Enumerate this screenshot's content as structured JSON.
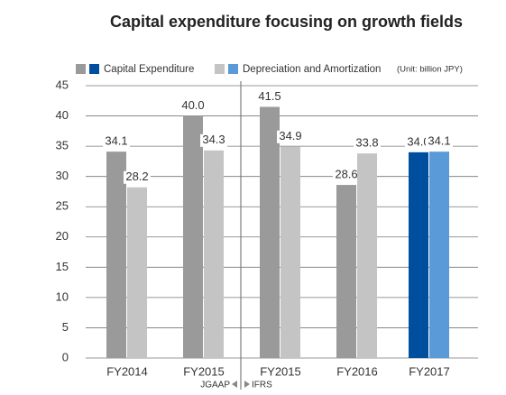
{
  "chart_data": {
    "type": "bar",
    "title": "Capital expenditure focusing on growth fields",
    "unit_note": "(Unit: billion JPY)",
    "annotations": [
      "JGAAP",
      "IFRS"
    ],
    "categories": [
      "FY2014",
      "FY2015",
      "FY2015",
      "FY2016",
      "FY2017"
    ],
    "series": [
      {
        "name": "Capital Expenditure",
        "colors": [
          "#9a9a9a",
          "#9a9a9a",
          "#9a9a9a",
          "#9a9a9a",
          "#004f9f"
        ],
        "values": [
          34.1,
          40.0,
          41.5,
          28.6,
          34.0
        ],
        "value_labels": [
          "34.1",
          "40.0",
          "41.5",
          "28.6",
          "34.0"
        ]
      },
      {
        "name": "Depreciation and Amortization",
        "colors": [
          "#c4c4c4",
          "#c4c4c4",
          "#c4c4c4",
          "#c4c4c4",
          "#5b9ad9"
        ],
        "values": [
          28.2,
          34.3,
          34.9,
          33.8,
          34.1
        ],
        "value_labels": [
          "28.2",
          "34.3",
          "34.9",
          "33.8",
          "34.1"
        ]
      }
    ],
    "ylim": [
      0,
      45
    ],
    "yticks": [
      0,
      5,
      10,
      15,
      20,
      25,
      30,
      35,
      40,
      45
    ],
    "grid": true
  }
}
